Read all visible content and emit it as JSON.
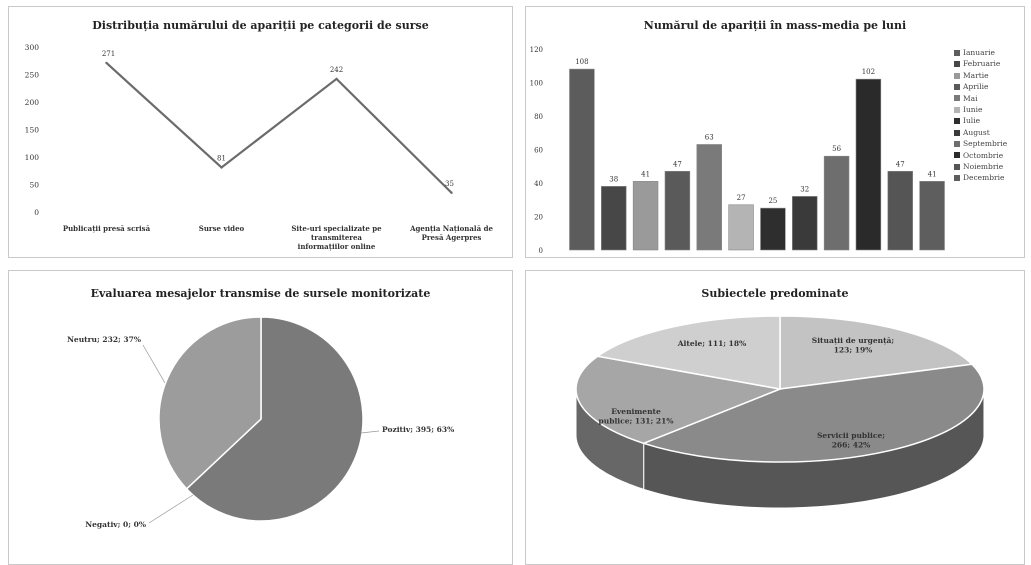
{
  "chart_data": [
    {
      "type": "line",
      "title": "Distribuția numărului de apariții pe categorii de surse",
      "categories": [
        "Publicații presă scrisă",
        "Surse video",
        "Site-uri specializate pe transmiterea informațiilor online",
        "Agenția Națională de Presă Agerpres"
      ],
      "category_lines": [
        [
          "Publicații presă scrisă"
        ],
        [
          "Surse video"
        ],
        [
          "Site-uri specializate pe",
          "transmiterea",
          "informațiilor online"
        ],
        [
          "Agenția Națională de",
          "Presă Agerpres"
        ]
      ],
      "values": [
        271,
        81,
        242,
        35
      ],
      "data_labels": [
        "271",
        "81",
        "242",
        "35"
      ],
      "ylim": [
        0,
        300
      ],
      "yticks": [
        "0",
        "50",
        "100",
        "150",
        "200",
        "250",
        "300"
      ],
      "line_color": "#6b6b6b",
      "grid": false
    },
    {
      "type": "bar",
      "title": "Numărul de apariții în mass-media pe luni",
      "categories": [
        "Ianuarie",
        "Februarie",
        "Martie",
        "Aprilie",
        "Mai",
        "Iunie",
        "Iulie",
        "August",
        "Septembrie",
        "Octombrie",
        "Noiembrie",
        "Decembrie"
      ],
      "values": [
        108,
        38,
        41,
        47,
        63,
        27,
        25,
        32,
        56,
        102,
        47,
        41
      ],
      "data_labels": [
        "108",
        "38",
        "41",
        "47",
        "63",
        "27",
        "25",
        "32",
        "56",
        "102",
        "47",
        "41"
      ],
      "colors": [
        "#5c5c5c",
        "#474747",
        "#9a9a9a",
        "#5a5a5a",
        "#7a7a7a",
        "#b4b4b4",
        "#2e2e2e",
        "#3a3a3a",
        "#6e6e6e",
        "#2a2a2a",
        "#555555",
        "#5e5e5e"
      ],
      "ylim": [
        0,
        120
      ],
      "yticks": [
        "0",
        "20",
        "40",
        "60",
        "80",
        "100",
        "120"
      ],
      "legend_position": "right",
      "grid": false
    },
    {
      "type": "pie",
      "title": "Evaluarea mesajelor transmise de sursele monitorizate",
      "slices": [
        {
          "label": "Pozitiv; 395; 63%",
          "value": 395,
          "color": "#7a7a7a"
        },
        {
          "label": "Negativ; 0; 0%",
          "value": 0,
          "color": "#ffffff"
        },
        {
          "label": "Neutru; 232; 37%",
          "value": 232,
          "color": "#9c9c9c"
        }
      ]
    },
    {
      "type": "pie",
      "title": "Subiectele predominate",
      "slices": [
        {
          "label": "Situații de urgență; 123; 19%",
          "value": 123,
          "color": "#c3c3c3"
        },
        {
          "label": "Servicii publice; 266; 42%",
          "value": 266,
          "color": "#8a8a8a"
        },
        {
          "label": "Evenimente publice; 131; 21%",
          "value": 131,
          "color": "#a6a6a6"
        },
        {
          "label": "Altele; 111; 18%",
          "value": 111,
          "color": "#cfcfcf"
        }
      ],
      "label_lines": [
        [
          "Situații de urgență;",
          "123; 19%"
        ],
        [
          "Servicii publice;",
          "266; 42%"
        ],
        [
          "Evenimente",
          "publice; 131; 21%"
        ],
        [
          "Altele; 111; 18%"
        ]
      ]
    }
  ]
}
